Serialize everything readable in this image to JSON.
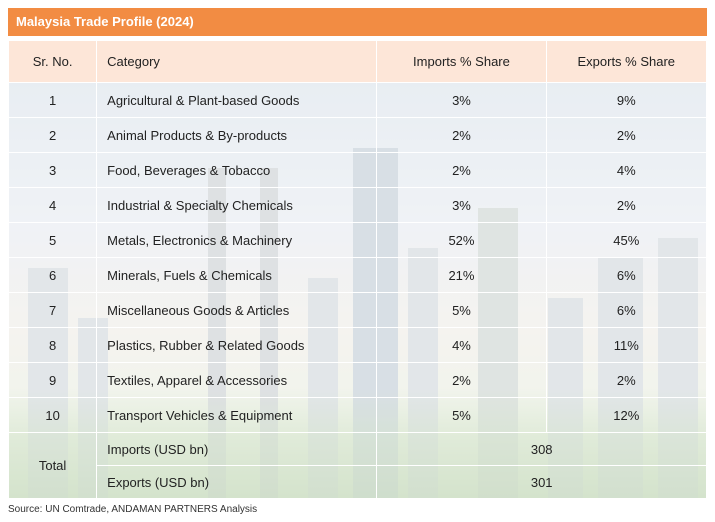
{
  "title": "Malaysia Trade Profile (2024)",
  "headers": {
    "sr": "Sr. No.",
    "category": "Category",
    "imports": "Imports % Share",
    "exports": "Exports % Share"
  },
  "rows": [
    {
      "sr": "1",
      "category": "Agricultural & Plant-based Goods",
      "imports": "3%",
      "exports": "9%"
    },
    {
      "sr": "2",
      "category": "Animal Products & By-products",
      "imports": "2%",
      "exports": "2%"
    },
    {
      "sr": "3",
      "category": "Food, Beverages & Tobacco",
      "imports": "2%",
      "exports": "4%"
    },
    {
      "sr": "4",
      "category": "Industrial & Specialty Chemicals",
      "imports": "3%",
      "exports": "2%"
    },
    {
      "sr": "5",
      "category": "Metals, Electronics & Machinery",
      "imports": "52%",
      "exports": "45%"
    },
    {
      "sr": "6",
      "category": "Minerals, Fuels & Chemicals",
      "imports": "21%",
      "exports": "6%"
    },
    {
      "sr": "7",
      "category": "Miscellaneous Goods & Articles",
      "imports": "5%",
      "exports": "6%"
    },
    {
      "sr": "8",
      "category": "Plastics, Rubber & Related Goods",
      "imports": "4%",
      "exports": "11%"
    },
    {
      "sr": "9",
      "category": "Textiles, Apparel & Accessories",
      "imports": "2%",
      "exports": "2%"
    },
    {
      "sr": "10",
      "category": "Transport Vehicles & Equipment",
      "imports": "5%",
      "exports": "12%"
    }
  ],
  "total": {
    "label": "Total",
    "imports_label": "Imports (USD bn)",
    "imports_value": "308",
    "exports_label": "Exports (USD bn)",
    "exports_value": "301"
  },
  "source": "Source: UN Comtrade, ANDAMAN PARTNERS Analysis",
  "colors": {
    "title_bar": "#f28c43",
    "header_bg": "#fde6d8"
  }
}
